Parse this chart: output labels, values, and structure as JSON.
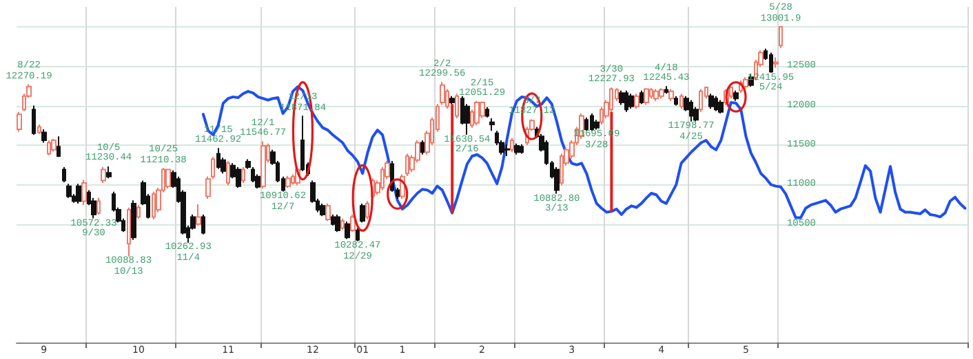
{
  "chart_data": {
    "type": "candlestick",
    "categories": [
      null,
      null,
      null,
      null,
      null,
      "9",
      null,
      null,
      null,
      null,
      null,
      null,
      null,
      null,
      null,
      null,
      null,
      null,
      null,
      null,
      null,
      null,
      null,
      null,
      "10",
      null,
      null,
      null,
      null,
      null,
      null,
      null,
      null,
      null,
      null,
      null,
      null,
      null,
      null,
      null,
      null,
      null,
      "11",
      null,
      null,
      null,
      null,
      null,
      null,
      null,
      null,
      null,
      null,
      null,
      null,
      null,
      null,
      null,
      null,
      "12",
      null,
      null,
      null,
      null,
      null,
      null,
      null,
      null,
      null,
      "01",
      null,
      null,
      null,
      null,
      null,
      null,
      null,
      "1",
      null,
      null,
      null,
      null,
      null,
      null,
      null,
      null,
      null,
      null,
      null,
      null,
      null,
      null,
      null,
      "2",
      null,
      null,
      null,
      null,
      null,
      null,
      null,
      null,
      null,
      null,
      null,
      null,
      null,
      null,
      null,
      null,
      null,
      "3",
      null,
      null,
      null,
      null,
      null,
      null,
      null,
      null,
      null,
      null,
      null,
      null,
      null,
      null,
      null,
      null,
      null,
      "4",
      null,
      null,
      null,
      null,
      null,
      null,
      null,
      null,
      null,
      null,
      null,
      null,
      null,
      null,
      null,
      null,
      "5",
      null,
      null,
      null,
      null,
      null,
      null,
      null,
      null,
      null,
      null,
      null,
      null,
      null,
      null,
      null,
      null,
      null,
      null,
      null,
      null,
      null,
      null,
      null,
      null,
      null,
      null,
      null,
      null,
      null,
      null,
      null,
      null,
      null,
      null,
      null,
      null,
      null,
      null,
      null,
      null,
      null,
      null,
      null,
      null
    ],
    "ohlc": [
      [
        11700,
        11920,
        11670,
        11890
      ],
      [
        11950,
        12150,
        11930,
        12120
      ],
      [
        12120,
        12270.19,
        12100,
        12240
      ],
      [
        11950,
        12000,
        11630,
        11650
      ],
      [
        11660,
        11760,
        11640,
        11730
      ],
      [
        11660,
        11700,
        11530,
        11560
      ],
      [
        11390,
        11560,
        11370,
        11530
      ],
      [
        11440,
        11580,
        11420,
        11560
      ],
      [
        11480,
        11610,
        11350,
        11360
      ],
      [
        11190,
        11220,
        11030,
        11050
      ],
      [
        10980,
        11010,
        10830,
        10850
      ],
      [
        10850,
        10880,
        10770,
        10790
      ],
      [
        10980,
        11010,
        10760,
        10790
      ],
      [
        10790,
        11060,
        10740,
        11020
      ],
      [
        10900,
        10930,
        10740,
        10760
      ],
      [
        10790,
        10830,
        10572.33,
        10620
      ],
      [
        10640,
        10830,
        10620,
        10790
      ],
      [
        11050,
        11220,
        11020,
        11190
      ],
      [
        11150,
        11230.44,
        11080,
        11100
      ],
      [
        10880,
        10910,
        10660,
        10680
      ],
      [
        10680,
        10710,
        10520,
        10540
      ],
      [
        10540,
        10570,
        10400,
        10420
      ],
      [
        10250,
        10710,
        10088.83,
        10680
      ],
      [
        10760,
        10800,
        10300,
        10330
      ],
      [
        10590,
        10740,
        10570,
        10710
      ],
      [
        11020,
        11050,
        10740,
        10760
      ],
      [
        10850,
        10880,
        10570,
        10590
      ],
      [
        10590,
        10910,
        10560,
        10880
      ],
      [
        10680,
        10960,
        10650,
        10930
      ],
      [
        10930,
        11210.38,
        10900,
        11190
      ],
      [
        10980,
        11200,
        10950,
        11190
      ],
      [
        11150,
        11180,
        10960,
        10980
      ],
      [
        11070,
        11100,
        10770,
        10790
      ],
      [
        10900,
        10930,
        10370,
        10390
      ],
      [
        10450,
        10480,
        10262.93,
        10330
      ],
      [
        10590,
        10620,
        10430,
        10450
      ],
      [
        10500,
        10750,
        10480,
        10590
      ],
      [
        10590,
        10620,
        10370,
        10390
      ],
      [
        10850,
        11100,
        10820,
        11070
      ],
      [
        11100,
        11350,
        11070,
        11320
      ],
      [
        11390,
        11462.92,
        11200,
        11220
      ],
      [
        11310,
        11340,
        11140,
        11170
      ],
      [
        11020,
        11300,
        10990,
        11270
      ],
      [
        11240,
        11270,
        11080,
        11100
      ],
      [
        11190,
        11220,
        10960,
        10980
      ],
      [
        11050,
        11220,
        11020,
        11190
      ],
      [
        11290,
        11320,
        11200,
        11220
      ],
      [
        11190,
        11220,
        11030,
        11050
      ],
      [
        11100,
        11130,
        10950,
        10970
      ],
      [
        10980,
        11546.77,
        10950,
        11490
      ],
      [
        11310,
        11520,
        11280,
        11490
      ],
      [
        11410,
        11440,
        11250,
        11270
      ],
      [
        11270,
        11300,
        11030,
        11050
      ],
      [
        11070,
        11100,
        10910.62,
        10930
      ],
      [
        10980,
        11110,
        10960,
        11080
      ],
      [
        11020,
        11130,
        11000,
        11100
      ],
      [
        11020,
        11220,
        10990,
        11190
      ],
      [
        11560,
        11871.84,
        11170,
        11190
      ],
      [
        11250,
        11280,
        11110,
        11140
      ],
      [
        11020,
        11050,
        10770,
        10790
      ],
      [
        10790,
        10820,
        10650,
        10680
      ],
      [
        10730,
        10760,
        10600,
        10620
      ],
      [
        10560,
        10760,
        10540,
        10730
      ],
      [
        10590,
        10620,
        10480,
        10500
      ],
      [
        10590,
        10620,
        10400,
        10420
      ],
      [
        10450,
        10570,
        10430,
        10540
      ],
      [
        10500,
        10530,
        10310,
        10330
      ],
      [
        10420,
        10620,
        10400,
        10590
      ],
      [
        10420,
        10450,
        10282.47,
        10300
      ],
      [
        10730,
        10760,
        10520,
        10540
      ],
      [
        10590,
        10790,
        10560,
        10760
      ],
      [
        10850,
        11080,
        10820,
        11050
      ],
      [
        10900,
        11050,
        10870,
        11020
      ],
      [
        10960,
        11220,
        10930,
        11190
      ],
      [
        11100,
        11300,
        11070,
        11270
      ],
      [
        11260,
        11300,
        10910,
        10930
      ],
      [
        10930,
        10960,
        10820,
        10850
      ],
      [
        10850,
        11130,
        10820,
        11100
      ],
      [
        11140,
        11390,
        11110,
        11360
      ],
      [
        11190,
        11370,
        11160,
        11340
      ],
      [
        11310,
        11560,
        11280,
        11530
      ],
      [
        11530,
        11560,
        11380,
        11410
      ],
      [
        11410,
        11680,
        11380,
        11650
      ],
      [
        11530,
        11850,
        11500,
        11820
      ],
      [
        11700,
        12020,
        11670,
        11990
      ],
      [
        12040,
        12299.56,
        12010,
        12260
      ],
      [
        11990,
        12210,
        11960,
        12180
      ],
      [
        12090,
        12120,
        12020,
        12040
      ],
      [
        11870,
        12150,
        11840,
        12120
      ],
      [
        12090,
        12120,
        11760,
        11780
      ],
      [
        11990,
        12020,
        11630.54,
        11780
      ],
      [
        11750,
        11950,
        11720,
        11920
      ],
      [
        11780,
        12060,
        11750,
        12040
      ],
      [
        11870,
        12051.29,
        11840,
        12040
      ],
      [
        11950,
        11980,
        11850,
        11870
      ],
      [
        11790,
        11840,
        11680,
        11760
      ],
      [
        11650,
        11680,
        11500,
        11530
      ],
      [
        11530,
        11560,
        11380,
        11410
      ],
      [
        11450,
        11510,
        11360,
        11440
      ],
      [
        11440,
        11590,
        11410,
        11560
      ],
      [
        11490,
        11520,
        11380,
        11410
      ],
      [
        11480,
        11510,
        11390,
        11410
      ],
      [
        11530,
        11730,
        11500,
        11700
      ],
      [
        11700,
        11827.12,
        11680,
        11810
      ],
      [
        11700,
        11730,
        11590,
        11610
      ],
      [
        11610,
        11640,
        11420,
        11440
      ],
      [
        11530,
        11560,
        11250,
        11270
      ],
      [
        11270,
        11300,
        11080,
        11100
      ],
      [
        11190,
        11220,
        10882.8,
        10930
      ],
      [
        11020,
        11390,
        10990,
        11360
      ],
      [
        11270,
        11470,
        11240,
        11440
      ],
      [
        11360,
        11560,
        11330,
        11530
      ],
      [
        11530,
        11730,
        11500,
        11700
      ],
      [
        11610,
        11900,
        11580,
        11870
      ],
      [
        11820,
        11850,
        11680,
        11700
      ],
      [
        11870,
        11900,
        11680,
        11700
      ],
      [
        11790,
        11820,
        11695.09,
        11720
      ],
      [
        11790,
        11980,
        11760,
        11950
      ],
      [
        11870,
        12070,
        11840,
        12040
      ],
      [
        11950,
        12227.93,
        11920,
        12210
      ],
      [
        12090,
        12220,
        12060,
        12200
      ],
      [
        12160,
        12190,
        12010,
        12040
      ],
      [
        12160,
        12190,
        11920,
        11950
      ],
      [
        12120,
        12150,
        11960,
        11990
      ],
      [
        11990,
        12150,
        11960,
        12120
      ],
      [
        12160,
        12190,
        12020,
        12040
      ],
      [
        12040,
        12220,
        12010,
        12210
      ],
      [
        12120,
        12220,
        12090,
        12200
      ],
      [
        12090,
        12210,
        12060,
        12180
      ],
      [
        12120,
        12220,
        12090,
        12200
      ],
      [
        12200,
        12245.43,
        12150,
        12170
      ],
      [
        12090,
        12210,
        12060,
        12180
      ],
      [
        12090,
        12120,
        12000,
        12020
      ],
      [
        11990,
        12150,
        11960,
        12120
      ],
      [
        12090,
        12120,
        11930,
        11950
      ],
      [
        12040,
        12070,
        11798.77,
        11870
      ],
      [
        11950,
        11980,
        11800,
        11820
      ],
      [
        11950,
        12210,
        11920,
        12180
      ],
      [
        12120,
        12240,
        12090,
        12230
      ],
      [
        12120,
        12150,
        11960,
        11990
      ],
      [
        12090,
        12120,
        11930,
        11950
      ],
      [
        12040,
        12070,
        11900,
        11920
      ],
      [
        12040,
        12210,
        12010,
        12180
      ],
      [
        12120,
        12240,
        12090,
        12230
      ],
      [
        12160,
        12190,
        12060,
        12090
      ],
      [
        12190,
        12320,
        12160,
        12290
      ],
      [
        12240,
        12360,
        12210,
        12330
      ],
      [
        12360,
        12400,
        12240,
        12260
      ],
      [
        12350,
        12580,
        12320,
        12550
      ],
      [
        12520,
        12700,
        12490,
        12670
      ],
      [
        12690,
        12720,
        12580,
        12600
      ],
      [
        12640,
        12670,
        12415.95,
        12430
      ],
      [
        12530,
        12610,
        12480,
        12550
      ],
      [
        12760,
        13001.9,
        12730,
        13000
      ],
      null,
      null,
      null,
      null,
      null,
      null,
      null,
      null,
      null,
      null,
      null,
      null,
      null,
      null,
      null,
      null,
      null,
      null,
      null,
      null,
      null,
      null,
      null,
      null,
      null,
      null,
      null,
      null,
      null,
      null,
      null,
      null,
      null,
      null,
      null,
      null,
      null
    ],
    "series": [
      {
        "type": "line",
        "color": "#1f4ff0",
        "values": [
          null,
          null,
          null,
          null,
          null,
          null,
          null,
          null,
          null,
          null,
          null,
          null,
          null,
          null,
          null,
          null,
          null,
          null,
          null,
          null,
          null,
          null,
          null,
          null,
          null,
          null,
          null,
          null,
          null,
          null,
          null,
          null,
          null,
          null,
          null,
          null,
          null,
          11890,
          11680,
          11630,
          11750,
          12030,
          12090,
          12110,
          12100,
          12150,
          12180,
          12160,
          12110,
          12090,
          12070,
          12090,
          12100,
          11900,
          11980,
          12180,
          12240,
          12190,
          12030,
          11900,
          11800,
          11720,
          11690,
          11630,
          11580,
          11530,
          11430,
          11370,
          11290,
          11140,
          11400,
          11600,
          11690,
          11630,
          11370,
          11070,
          10800,
          10690,
          10740,
          10820,
          10890,
          10940,
          10930,
          10890,
          10980,
          10930,
          10790,
          10640,
          10830,
          11050,
          11260,
          11360,
          11380,
          11340,
          11270,
          11140,
          11010,
          11220,
          11570,
          11900,
          12060,
          12110,
          12100,
          12050,
          11990,
          12020,
          12100,
          12020,
          11800,
          11550,
          11380,
          11270,
          11250,
          11270,
          11140,
          10930,
          10760,
          10700,
          10650,
          10660,
          10690,
          10620,
          10690,
          10730,
          10710,
          10760,
          10830,
          10890,
          10870,
          10790,
          10760,
          10880,
          11000,
          11270,
          11340,
          11410,
          11470,
          11530,
          11560,
          11480,
          11440,
          11560,
          11800,
          12040,
          12030,
          11950,
          11610,
          11400,
          11280,
          11140,
          11080,
          11000,
          10980,
          10970,
          10880,
          10730,
          10580,
          10580,
          10700,
          10740,
          10760,
          10780,
          10800,
          10740,
          10650,
          10690,
          10710,
          10730,
          10830,
          11030,
          11240,
          11170,
          10830,
          10650,
          10940,
          11230,
          10900,
          10690,
          10650,
          10650,
          10640,
          10630,
          10680,
          10620,
          10610,
          10590,
          10640,
          10790,
          10840,
          10760,
          10700
        ]
      }
    ],
    "ylim": [
      9000,
      13250
    ],
    "yticks": [
      10500,
      11000,
      11500,
      12000,
      12500,
      {
        "value": 13000,
        "label": null
      }
    ],
    "grid": true,
    "annotations": [
      {
        "text": "8/22\n12270.19",
        "y": 12270.19
      },
      {
        "text": "10572.33\n9/30",
        "y": 10572.33
      },
      {
        "text": "10/5\n11230.44",
        "y": 11230.44
      },
      {
        "text": "10088.83\n10/13",
        "y": 10088.83
      },
      {
        "text": "10/25\n11210.38",
        "y": 11210.38
      },
      {
        "text": "10262.93\n11/4",
        "y": 10262.93
      },
      {
        "text": "11/15\n11462.92",
        "y": 11462.92
      },
      {
        "text": "12/1\n11546.77",
        "y": 11546.77
      },
      {
        "text": "10910.62\n12/7",
        "y": 10910.62
      },
      {
        "text": "12/13\n11871.84",
        "y": 11871.84
      },
      {
        "text": "10282.47\n12/29",
        "y": 10282.47
      },
      {
        "text": "2/2\n12299.56",
        "y": 12299.56
      },
      {
        "text": "11630.54\n2/16",
        "y": 11630.54
      },
      {
        "text": "2/15\n12051.29",
        "y": 12051.29
      },
      {
        "text": "3/7\n11827.12",
        "y": 11827.12
      },
      {
        "text": "10882.80\n3/13",
        "y": 10882.8
      },
      {
        "text": "11695.09\n3/28",
        "y": 11695.09
      },
      {
        "text": "3/30\n12227.93",
        "y": 12227.93
      },
      {
        "text": "4/18\n12245.43",
        "y": 12245.43
      },
      {
        "text": "11798.77\n4/25",
        "y": 11798.77
      },
      {
        "text": "12415.95\n5/24",
        "y": 12415.95
      },
      {
        "text": "5/28\n13001.9",
        "y": 13001.9
      }
    ]
  }
}
